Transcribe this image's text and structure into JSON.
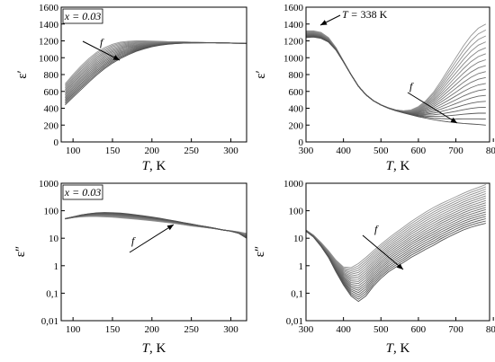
{
  "chart_data": [
    {
      "type": "line",
      "panel": "top-left",
      "xlabel_var": "T",
      "xlabel_unit": ", K",
      "ylabel": "ε′",
      "xlim": [
        85,
        320
      ],
      "ylim": [
        0,
        1600
      ],
      "yscale": "linear",
      "xticks": [
        "100",
        "150",
        "200",
        "250",
        "300"
      ],
      "yticks": [
        "0",
        "200",
        "400",
        "600",
        "800",
        "1000",
        "1200",
        "1400",
        "1600"
      ],
      "annotations": {
        "composition": "x = 0.03",
        "freq": "f"
      },
      "series_count": 16,
      "x": [
        90,
        100,
        110,
        120,
        130,
        140,
        150,
        160,
        170,
        180,
        190,
        200,
        210,
        220,
        230,
        240,
        250,
        260,
        270,
        280,
        290,
        300,
        310,
        320
      ],
      "series_bounds": {
        "lowest_frequency": [
          690,
          800,
          900,
          990,
          1065,
          1120,
          1160,
          1185,
          1195,
          1200,
          1200,
          1198,
          1195,
          1192,
          1190,
          1188,
          1185,
          1182,
          1180,
          1178,
          1175,
          1172,
          1170,
          1168
        ],
        "highest_frequency": [
          440,
          530,
          620,
          710,
          795,
          870,
          935,
          990,
          1035,
          1075,
          1105,
          1130,
          1148,
          1160,
          1168,
          1172,
          1175,
          1176,
          1177,
          1177,
          1176,
          1175,
          1173,
          1170
        ]
      }
    },
    {
      "type": "line",
      "panel": "top-right",
      "xlabel_var": "T",
      "xlabel_unit": ", K",
      "ylabel": "ε′",
      "xlim": [
        300,
        790
      ],
      "ylim": [
        0,
        1600
      ],
      "yscale": "linear",
      "xticks": [
        "300",
        "400",
        "500",
        "600",
        "700",
        "800"
      ],
      "yticks": [
        "0",
        "200",
        "400",
        "600",
        "800",
        "1000",
        "1200",
        "1400",
        "1600"
      ],
      "annotations": {
        "peak_prefix": "T = ",
        "peak": "338 K",
        "freq": "f"
      },
      "series_count": 18,
      "x": [
        300,
        320,
        340,
        360,
        380,
        400,
        420,
        440,
        460,
        480,
        500,
        520,
        540,
        560,
        580,
        600,
        620,
        640,
        660,
        680,
        700,
        720,
        740,
        760,
        780
      ],
      "series_bounds": {
        "lowest_frequency": [
          1320,
          1320,
          1300,
          1240,
          1120,
          960,
          800,
          660,
          560,
          490,
          440,
          405,
          380,
          370,
          380,
          420,
          490,
          590,
          720,
          860,
          1000,
          1140,
          1260,
          1350,
          1400
        ],
        "highest_frequency": [
          1240,
          1245,
          1230,
          1185,
          1090,
          950,
          800,
          660,
          560,
          490,
          440,
          400,
          370,
          345,
          322,
          300,
          282,
          265,
          250,
          238,
          228,
          220,
          213,
          207,
          200
        ]
      }
    },
    {
      "type": "line",
      "panel": "bottom-left",
      "xlabel_var": "T",
      "xlabel_unit": ", K",
      "ylabel": "ε″",
      "xlim": [
        85,
        320
      ],
      "ylim": [
        0.01,
        1000
      ],
      "yscale": "log",
      "xticks": [
        "100",
        "150",
        "200",
        "250",
        "300"
      ],
      "yticks": [
        "0,01",
        "0,1",
        "1",
        "10",
        "100",
        "1000"
      ],
      "annotations": {
        "composition": "x = 0.03",
        "freq": "f"
      },
      "series_count": 16,
      "x": [
        90,
        100,
        110,
        120,
        130,
        140,
        150,
        160,
        170,
        180,
        190,
        200,
        210,
        220,
        230,
        240,
        250,
        260,
        270,
        280,
        290,
        300,
        310,
        320
      ],
      "series_bounds": {
        "lowest_frequency": [
          50,
          56,
          60,
          62,
          62,
          60,
          58,
          55,
          52,
          49,
          46,
          43,
          40,
          37,
          34,
          31,
          28,
          26,
          24,
          22,
          20,
          18.5,
          17,
          15
        ],
        "highest_frequency": [
          52,
          60,
          70,
          78,
          84,
          86,
          85,
          82,
          77,
          71,
          65,
          59,
          53,
          47,
          42,
          37,
          33,
          29,
          26,
          23,
          20,
          18,
          15,
          10
        ]
      }
    },
    {
      "type": "line",
      "panel": "bottom-right",
      "xlabel_var": "T",
      "xlabel_unit": ", K",
      "ylabel": "ε″",
      "xlim": [
        300,
        790
      ],
      "ylim": [
        0.01,
        1000
      ],
      "yscale": "log",
      "xticks": [
        "300",
        "400",
        "500",
        "600",
        "700",
        "800"
      ],
      "yticks": [
        "0,01",
        "0,1",
        "1",
        "10",
        "100",
        "1000"
      ],
      "annotations": {
        "freq": "f"
      },
      "series_count": 18,
      "x": [
        300,
        320,
        340,
        360,
        380,
        400,
        420,
        440,
        460,
        480,
        500,
        520,
        540,
        560,
        580,
        600,
        620,
        640,
        660,
        680,
        700,
        720,
        740,
        760,
        780
      ],
      "series_bounds": {
        "lowest_frequency": [
          20,
          13,
          7,
          3.5,
          1.6,
          0.9,
          0.85,
          1.2,
          2,
          3.5,
          6,
          10,
          16,
          25,
          40,
          60,
          90,
          130,
          180,
          240,
          320,
          430,
          560,
          700,
          900
        ],
        "highest_frequency": [
          18,
          11,
          5,
          2,
          0.6,
          0.2,
          0.08,
          0.05,
          0.08,
          0.18,
          0.35,
          0.6,
          0.9,
          1.3,
          2,
          2.8,
          4,
          5.5,
          8,
          11,
          15,
          20,
          25,
          30,
          35
        ]
      }
    }
  ]
}
